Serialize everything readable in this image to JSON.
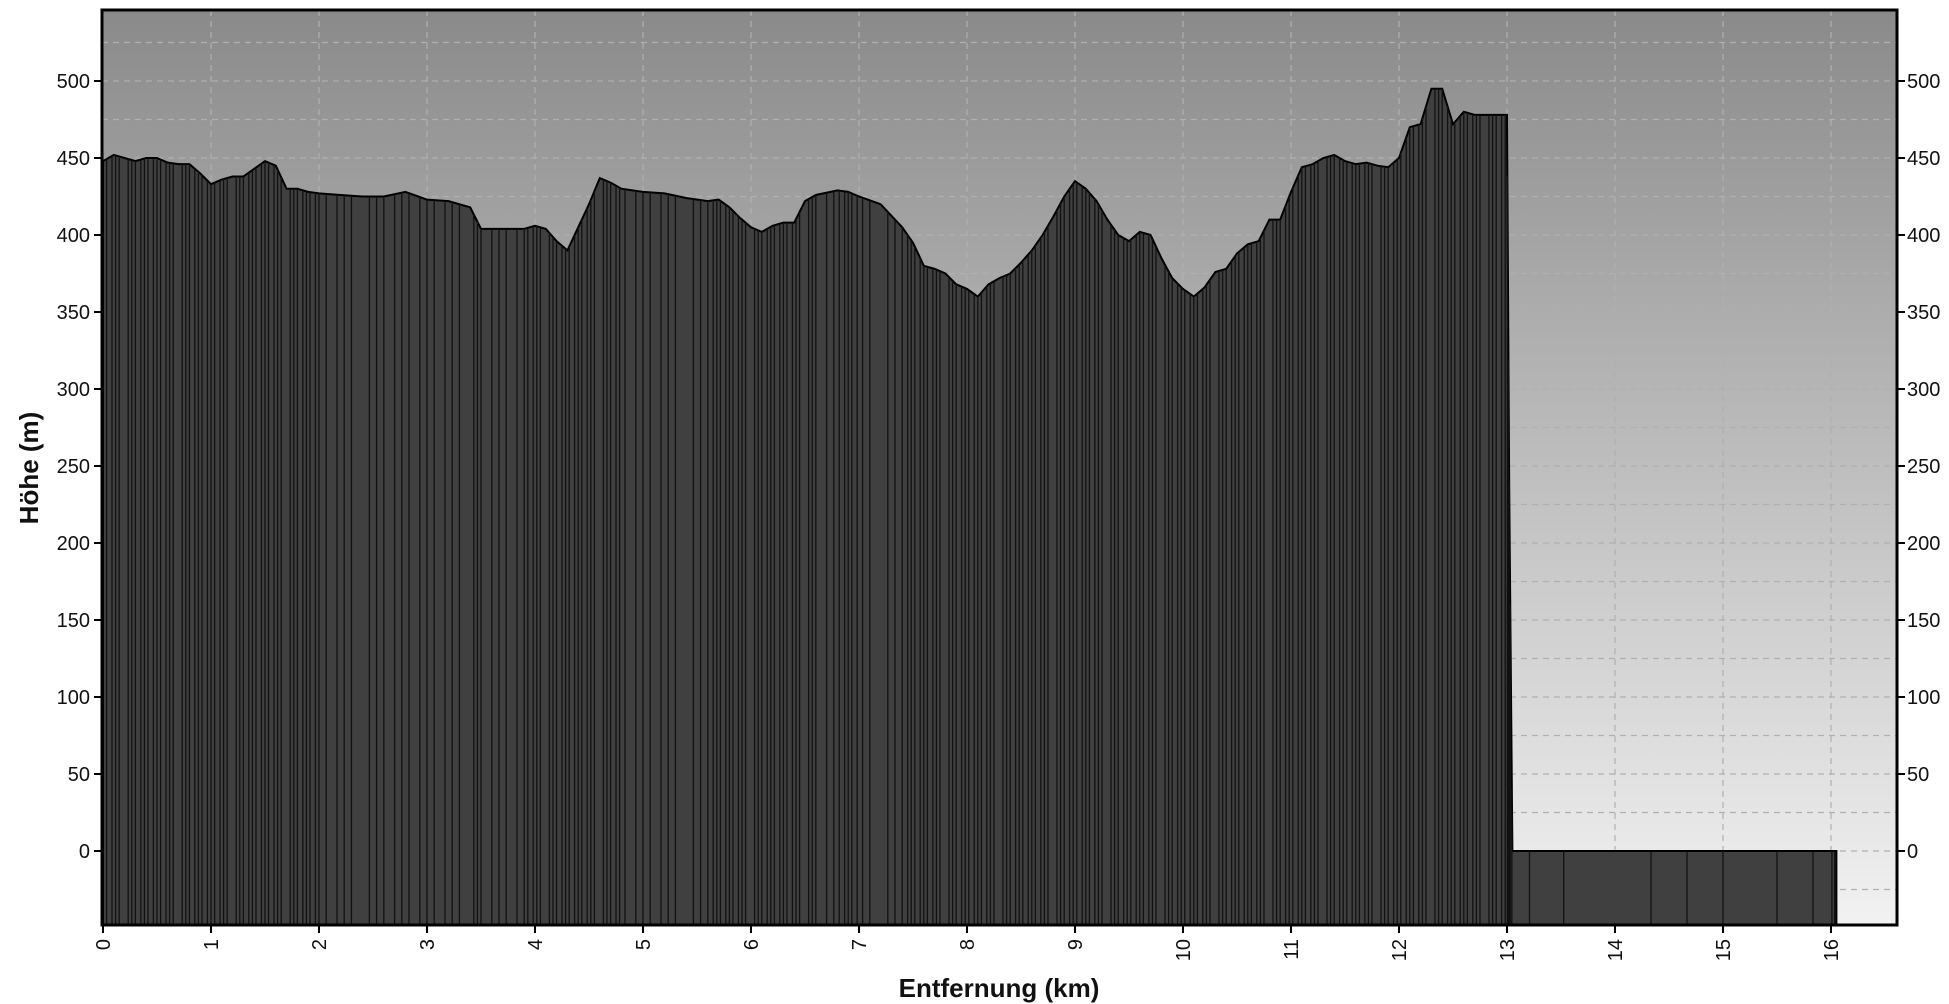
{
  "chart_data": {
    "type": "area",
    "title": "",
    "xlabel": "Entfernung (km)",
    "ylabel": "Höhe (m)",
    "xlim": [
      0,
      16.5
    ],
    "ylim": [
      -50,
      550
    ],
    "x_ticks": [
      0,
      1,
      2,
      3,
      4,
      5,
      6,
      7,
      8,
      9,
      10,
      11,
      12,
      13,
      14,
      15,
      16
    ],
    "x_tick_labels": [
      "0",
      "1",
      "2",
      "3",
      "4",
      "5",
      "6",
      "7",
      "8",
      "9",
      "10",
      "11",
      "12",
      "13",
      "14",
      "15",
      "16"
    ],
    "y_ticks": [
      0,
      50,
      100,
      150,
      200,
      250,
      300,
      350,
      400,
      450,
      500
    ],
    "y_tick_labels": [
      "0",
      "50",
      "100",
      "150",
      "200",
      "250",
      "300",
      "350",
      "400",
      "450",
      "500"
    ],
    "grid": true,
    "legend": "none",
    "colors": {
      "fill": "#404040",
      "outline": "#000000",
      "background_top": "#8a8a8a",
      "background_bottom": "#f2f2f2",
      "grid": "#b0b0b0"
    },
    "series": [
      {
        "x": [
          0,
          0.1,
          0.2,
          0.3,
          0.4,
          0.5,
          0.6,
          0.7,
          0.8,
          0.9,
          1.0,
          1.1,
          1.2,
          1.3,
          1.4,
          1.5,
          1.6,
          1.7,
          1.8,
          1.9,
          2.0,
          2.2,
          2.4,
          2.6,
          2.8,
          3.0,
          3.2,
          3.4,
          3.5,
          3.7,
          3.9,
          4.0,
          4.1,
          4.2,
          4.3,
          4.4,
          4.5,
          4.6,
          4.7,
          4.8,
          5.0,
          5.2,
          5.4,
          5.6,
          5.7,
          5.8,
          5.9,
          6.0,
          6.1,
          6.2,
          6.3,
          6.4,
          6.5,
          6.6,
          6.8,
          6.9,
          7.0,
          7.2,
          7.4,
          7.5,
          7.6,
          7.7,
          7.8,
          7.9,
          8.0,
          8.1,
          8.2,
          8.3,
          8.4,
          8.5,
          8.6,
          8.7,
          8.8,
          8.9,
          9.0,
          9.1,
          9.2,
          9.3,
          9.4,
          9.5,
          9.6,
          9.7,
          9.8,
          9.9,
          10.0,
          10.1,
          10.2,
          10.3,
          10.4,
          10.5,
          10.6,
          10.7,
          10.8,
          10.9,
          11.0,
          11.1,
          11.2,
          11.3,
          11.4,
          11.5,
          11.6,
          11.7,
          11.8,
          11.9,
          12.0,
          12.1,
          12.2,
          12.3,
          12.4,
          12.5,
          12.6,
          12.7,
          12.8,
          12.9,
          13.0,
          13.02,
          13.05,
          14.0,
          15.0,
          16.0,
          16.05
        ],
        "y": [
          448,
          452,
          450,
          448,
          450,
          450,
          447,
          446,
          446,
          440,
          433,
          436,
          438,
          438,
          443,
          448,
          445,
          430,
          430,
          428,
          427,
          426,
          425,
          425,
          428,
          423,
          422,
          418,
          404,
          404,
          404,
          406,
          404,
          396,
          390,
          405,
          420,
          437,
          434,
          430,
          428,
          427,
          424,
          422,
          423,
          418,
          411,
          405,
          402,
          406,
          408,
          408,
          422,
          426,
          429,
          428,
          425,
          420,
          405,
          395,
          380,
          378,
          375,
          368,
          365,
          360,
          368,
          372,
          375,
          382,
          390,
          400,
          412,
          425,
          435,
          430,
          422,
          410,
          400,
          396,
          402,
          400,
          385,
          372,
          365,
          360,
          366,
          376,
          378,
          388,
          394,
          396,
          410,
          410,
          428,
          444,
          446,
          450,
          452,
          448,
          446,
          447,
          445,
          444,
          450,
          470,
          472,
          495,
          495,
          472,
          480,
          478,
          478,
          478,
          478,
          240,
          0,
          0,
          0,
          0,
          0
        ]
      }
    ]
  }
}
